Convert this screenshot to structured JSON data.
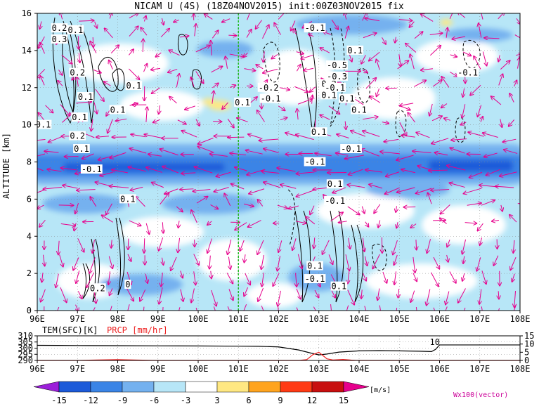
{
  "chart_data": [
    {
      "type": "heatmap",
      "title": "NICAM U (4S) (18Z04NOV2015) init:00Z03NOV2015 fix",
      "xlabel": "",
      "ylabel": "ALTITUDE [km]",
      "x_ticks": [
        "96E",
        "97E",
        "98E",
        "99E",
        "100E",
        "101E",
        "102E",
        "103E",
        "104E",
        "105E",
        "106E",
        "107E",
        "108E"
      ],
      "y_ticks": [
        "0",
        "2",
        "4",
        "6",
        "8",
        "10",
        "12",
        "14",
        "16"
      ],
      "xlim": [
        96,
        108
      ],
      "ylim": [
        0,
        16
      ],
      "marker_line_x": 101,
      "contour_labels": [
        {
          "text": "0.2",
          "x": 96.55,
          "y": 15.2
        },
        {
          "text": "0.3",
          "x": 96.55,
          "y": 14.6
        },
        {
          "text": "0.1",
          "x": 96.95,
          "y": 15.1
        },
        {
          "text": "0.1",
          "x": 96.15,
          "y": 10.0
        },
        {
          "text": "0.2",
          "x": 97.0,
          "y": 12.8
        },
        {
          "text": "0.1",
          "x": 97.2,
          "y": 11.5
        },
        {
          "text": "0.1",
          "x": 97.05,
          "y": 10.4
        },
        {
          "text": "0.2",
          "x": 97.0,
          "y": 9.4
        },
        {
          "text": "0.1",
          "x": 97.1,
          "y": 8.7
        },
        {
          "text": "-0.1",
          "x": 97.35,
          "y": 7.6
        },
        {
          "text": "0.1",
          "x": 98.4,
          "y": 12.1
        },
        {
          "text": "0.1",
          "x": 98.0,
          "y": 10.8
        },
        {
          "text": "0.1",
          "x": 101.1,
          "y": 11.2
        },
        {
          "text": "-0.2",
          "x": 101.75,
          "y": 12.0
        },
        {
          "text": "-0.1",
          "x": 101.8,
          "y": 11.4
        },
        {
          "text": "0.1",
          "x": 98.25,
          "y": 6.0
        },
        {
          "text": "0.2",
          "x": 103.25,
          "y": 12.2
        },
        {
          "text": "0.1",
          "x": 103.25,
          "y": 11.6
        },
        {
          "text": "-0.1",
          "x": 102.9,
          "y": 15.2
        },
        {
          "text": "-0.5",
          "x": 103.45,
          "y": 13.2
        },
        {
          "text": "-0.3",
          "x": 103.45,
          "y": 12.6
        },
        {
          "text": "-0.1",
          "x": 103.4,
          "y": 12.0
        },
        {
          "text": "0.1",
          "x": 103.7,
          "y": 11.4
        },
        {
          "text": "0.1",
          "x": 104.0,
          "y": 10.8
        },
        {
          "text": "0.1",
          "x": 103.0,
          "y": 9.6
        },
        {
          "text": "-0.1",
          "x": 103.8,
          "y": 8.7
        },
        {
          "text": "-0.1",
          "x": 102.9,
          "y": 8.0
        },
        {
          "text": "0.1",
          "x": 103.4,
          "y": 6.8
        },
        {
          "text": "-0.1",
          "x": 103.4,
          "y": 5.9
        },
        {
          "text": "0.1",
          "x": 103.9,
          "y": 14.0
        },
        {
          "text": "-0.1",
          "x": 106.7,
          "y": 12.8
        },
        {
          "text": "0.1",
          "x": 102.9,
          "y": 2.4
        },
        {
          "text": "-0.1",
          "x": 102.9,
          "y": 1.7
        },
        {
          "text": "0.1",
          "x": 103.5,
          "y": 1.3
        },
        {
          "text": "0.2",
          "x": 97.5,
          "y": 1.2
        },
        {
          "text": "0",
          "x": 98.25,
          "y": 1.4
        }
      ]
    },
    {
      "type": "line",
      "left_label": "TEM(SFC)[K]",
      "right_label": "PRCP [mm/hr]",
      "x_ticks": [
        "96E",
        "97E",
        "98E",
        "99E",
        "100E",
        "101E",
        "102E",
        "103E",
        "104E",
        "105E",
        "106E",
        "107E",
        "108E"
      ],
      "left_ticks": [
        "310",
        "305",
        "300",
        "295",
        "290"
      ],
      "right_ticks": [
        "15",
        "10",
        "5",
        "0"
      ],
      "left_ylim": [
        290,
        310
      ],
      "right_ylim": [
        0,
        15
      ],
      "annotation": "10",
      "series": [
        {
          "name": "TEM(SFC)[K]",
          "x": [
            96,
            96.5,
            97,
            98,
            99,
            100,
            101,
            101.5,
            102,
            102.5,
            102.8,
            103,
            103.2,
            103.5,
            104,
            104.5,
            105,
            105.5,
            105.8,
            105.9,
            106,
            106.5,
            107,
            108
          ],
          "y": [
            302.3,
            302.2,
            302.1,
            302.0,
            301.9,
            301.8,
            301.6,
            301.5,
            301.0,
            298.5,
            296.0,
            294.5,
            295.2,
            296.8,
            297.8,
            298.0,
            297.8,
            297.5,
            297.2,
            299.0,
            302.6,
            302.6,
            302.6,
            302.6
          ]
        },
        {
          "name": "PRCP [mm/hr]",
          "x": [
            96,
            97,
            97.5,
            98,
            98.5,
            99,
            102.5,
            102.7,
            102.85,
            103,
            103.1,
            103.2,
            103.35,
            103.6,
            103.8,
            104,
            108
          ],
          "y": [
            0,
            0,
            0.3,
            0.5,
            0.2,
            0,
            0,
            0.5,
            3.5,
            5.0,
            3.0,
            1.0,
            0.3,
            0.6,
            0.2,
            0,
            0
          ]
        }
      ]
    }
  ],
  "colorbar": {
    "ticks": [
      "-15",
      "-12",
      "-9",
      "-6",
      "-3",
      "3",
      "6",
      "9",
      "12",
      "15"
    ],
    "colors": [
      "#9b1fd9",
      "#1c5ad9",
      "#3a84e6",
      "#74b1ef",
      "#b7e6f7",
      "#ffffff",
      "#ffe882",
      "#ffa41f",
      "#ff3a14",
      "#c80f0f",
      "#e6008c"
    ],
    "unit": "[m/s]",
    "vector_label": "Wx100(vector)"
  }
}
